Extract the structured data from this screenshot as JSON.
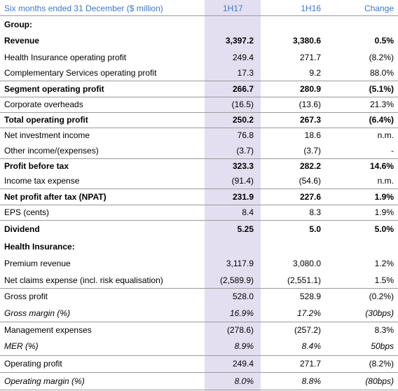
{
  "table": {
    "header": [
      "Six months ended 31 December ($ million)",
      "1H17",
      "1H16",
      "Change"
    ],
    "rows": [
      [
        "Group:",
        "",
        "",
        ""
      ],
      [
        "Revenue",
        "3,397.2",
        "3,380.6",
        "0.5%"
      ],
      [
        "Health Insurance operating profit",
        "249.4",
        "271.7",
        "(8.2%)"
      ],
      [
        "Complementary Services operating profit",
        "17.3",
        "9.2",
        "88.0%"
      ],
      [
        "Segment operating profit",
        "266.7",
        "280.9",
        "(5.1%)"
      ],
      [
        "Corporate overheads",
        "(16.5)",
        "(13.6)",
        "21.3%"
      ],
      [
        "Total operating profit",
        "250.2",
        "267.3",
        "(6.4%)"
      ],
      [
        "Net investment income",
        "76.8",
        "18.6",
        "n.m."
      ],
      [
        "Other income/(expenses)",
        "(3.7)",
        "(3.7)",
        "-"
      ],
      [
        "Profit before tax",
        "323.3",
        "282.2",
        "14.6%"
      ],
      [
        "Income tax expense",
        "(91.4)",
        "(54.6)",
        "n.m."
      ],
      [
        "Net profit after tax (NPAT)",
        "231.9",
        "227.6",
        "1.9%"
      ],
      [
        "EPS (cents)",
        "8.4",
        "8.3",
        "1.9%"
      ],
      [
        "Dividend",
        "5.25",
        "5.0",
        "5.0%"
      ],
      [
        "Health Insurance:",
        "",
        "",
        ""
      ],
      [
        "Premium revenue",
        "3,117.9",
        "3,080.0",
        "1.2%"
      ],
      [
        "Net claims expense (incl. risk equalisation)",
        "(2,589.9)",
        "(2,551.1)",
        "1.5%"
      ],
      [
        "Gross profit",
        "528.0",
        "528.9",
        "(0.2%)"
      ],
      [
        "Gross margin (%)",
        "16.9%",
        "17.2%",
        "(30bps)"
      ],
      [
        "Management expenses",
        "(278.6)",
        "(257.2)",
        "8.3%"
      ],
      [
        "MER (%)",
        "8.9%",
        "8.4%",
        "50bps"
      ],
      [
        "Operating profit",
        "249.4",
        "271.7",
        "(8.2%)"
      ],
      [
        "Operating margin (%)",
        "8.0%",
        "8.8%",
        "(80bps)"
      ]
    ]
  }
}
